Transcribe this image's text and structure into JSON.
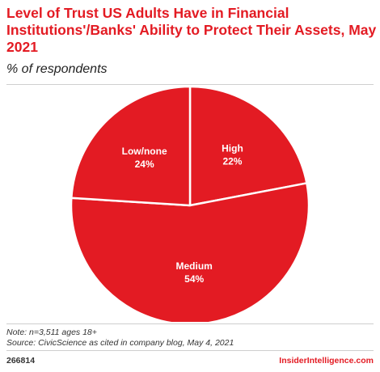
{
  "header": {
    "title": "Level of Trust US Adults Have in Financial Institutions'/Banks' Ability to Protect Their Assets, May 2021",
    "subtitle": "% of respondents"
  },
  "chart_data": {
    "type": "pie",
    "title": "Level of Trust US Adults Have in Financial Institutions'/Banks' Ability to Protect Their Assets, May 2021",
    "subtitle": "% of respondents",
    "slices": [
      {
        "label": "High",
        "value": 22,
        "value_label": "22%"
      },
      {
        "label": "Medium",
        "value": 54,
        "value_label": "54%"
      },
      {
        "label": "Low/none",
        "value": 24,
        "value_label": "24%"
      }
    ],
    "start": "12 o'clock",
    "direction": "clockwise",
    "color": "#e31b23",
    "separator_color": "#ffffff",
    "legend": "none"
  },
  "footer": {
    "note": "Note: n=3,511 ages 18+",
    "source": "Source: CivicScience as cited in company blog, May 4, 2021",
    "chart_id": "266814",
    "brand": "InsiderIntelligence.com"
  }
}
